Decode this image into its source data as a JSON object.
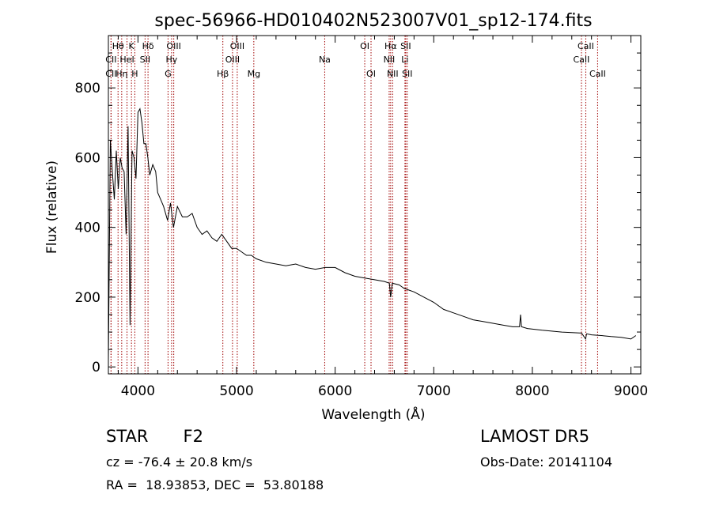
{
  "chart_data": {
    "type": "line",
    "title": "spec-56966-HD010402N523007V01_sp12-174.fits",
    "xlabel": "Wavelength (Å)",
    "ylabel": "Flux (relative)",
    "xlim": [
      3700,
      9100
    ],
    "ylim": [
      -20,
      950
    ],
    "xticks": [
      4000,
      5000,
      6000,
      7000,
      8000,
      9000
    ],
    "yticks": [
      0,
      200,
      400,
      600,
      800
    ],
    "grid": false,
    "series": [
      {
        "x": [
          3700,
          3720,
          3740,
          3760,
          3780,
          3800,
          3820,
          3840,
          3860,
          3880,
          3900,
          3920,
          3940,
          3960,
          3980,
          4000,
          4020,
          4040,
          4060,
          4080,
          4100,
          4120,
          4150,
          4180,
          4200,
          4230,
          4260,
          4300,
          4330,
          4360,
          4400,
          4450,
          4500,
          4550,
          4600,
          4650,
          4700,
          4750,
          4800,
          4850,
          4900,
          4950,
          5000,
          5050,
          5100,
          5150,
          5200,
          5300,
          5400,
          5500,
          5600,
          5700,
          5800,
          5900,
          6000,
          6100,
          6200,
          6300,
          6400,
          6500,
          6550,
          6563,
          6580,
          6650,
          6700,
          6800,
          6900,
          7000,
          7100,
          7200,
          7300,
          7400,
          7500,
          7600,
          7700,
          7800,
          7870,
          7880,
          7890,
          7950,
          8100,
          8300,
          8500,
          8540,
          8550,
          8600,
          8700,
          8800,
          8900,
          9000,
          9050
        ],
        "y": [
          20,
          650,
          560,
          480,
          620,
          510,
          600,
          570,
          560,
          380,
          690,
          120,
          620,
          600,
          540,
          730,
          740,
          700,
          640,
          640,
          600,
          550,
          580,
          560,
          500,
          480,
          460,
          420,
          470,
          400,
          460,
          430,
          430,
          440,
          400,
          380,
          390,
          370,
          360,
          380,
          360,
          340,
          340,
          330,
          320,
          320,
          310,
          300,
          295,
          290,
          295,
          285,
          280,
          285,
          285,
          270,
          260,
          255,
          250,
          245,
          240,
          200,
          240,
          235,
          225,
          215,
          200,
          185,
          165,
          155,
          145,
          135,
          130,
          125,
          120,
          115,
          115,
          150,
          115,
          110,
          105,
          100,
          97,
          80,
          95,
          92,
          90,
          87,
          85,
          80,
          90
        ]
      }
    ],
    "lines": [
      {
        "label": "CII",
        "wave": 3727,
        "row": 2
      },
      {
        "label": "CII",
        "wave": 3727,
        "row": 3
      },
      {
        "label": "Hθ",
        "wave": 3798,
        "row": 1
      },
      {
        "label": "Hη",
        "wave": 3835,
        "row": 3
      },
      {
        "label": "HeI",
        "wave": 3889,
        "row": 2
      },
      {
        "label": "K",
        "wave": 3934,
        "row": 1
      },
      {
        "label": "H",
        "wave": 3968,
        "row": 3
      },
      {
        "label": "SII",
        "wave": 4072,
        "row": 2
      },
      {
        "label": "Hδ",
        "wave": 4102,
        "row": 1
      },
      {
        "label": "G",
        "wave": 4305,
        "row": 3
      },
      {
        "label": "Hγ",
        "wave": 4341,
        "row": 2
      },
      {
        "label": "OIII",
        "wave": 4363,
        "row": 1
      },
      {
        "label": "Hβ",
        "wave": 4861,
        "row": 3
      },
      {
        "label": "OIII",
        "wave": 4959,
        "row": 2
      },
      {
        "label": "OIII",
        "wave": 5007,
        "row": 1
      },
      {
        "label": "Mg",
        "wave": 5175,
        "row": 3
      },
      {
        "label": "Na",
        "wave": 5894,
        "row": 2
      },
      {
        "label": "OI",
        "wave": 6300,
        "row": 1
      },
      {
        "label": "OI",
        "wave": 6364,
        "row": 3
      },
      {
        "label": "NII",
        "wave": 6548,
        "row": 2
      },
      {
        "label": "Hα",
        "wave": 6563,
        "row": 1
      },
      {
        "label": "NII",
        "wave": 6583,
        "row": 3
      },
      {
        "label": "Li",
        "wave": 6708,
        "row": 2
      },
      {
        "label": "SII",
        "wave": 6716,
        "row": 1
      },
      {
        "label": "SII",
        "wave": 6731,
        "row": 3
      },
      {
        "label": "CaII",
        "wave": 8498,
        "row": 2
      },
      {
        "label": "CaII",
        "wave": 8542,
        "row": 1
      },
      {
        "label": "CaII",
        "wave": 8662,
        "row": 3
      }
    ],
    "line_color": "#a00000",
    "spectrum_color": "#000000"
  },
  "footer": {
    "class_label": "STAR",
    "subclass": "F2",
    "survey": "LAMOST DR5",
    "cz": "cz = -76.4 ± 20.8 km/s",
    "obs_date": "Obs-Date: 20141104",
    "radec": "RA =  18.93853, DEC =  53.80188"
  }
}
